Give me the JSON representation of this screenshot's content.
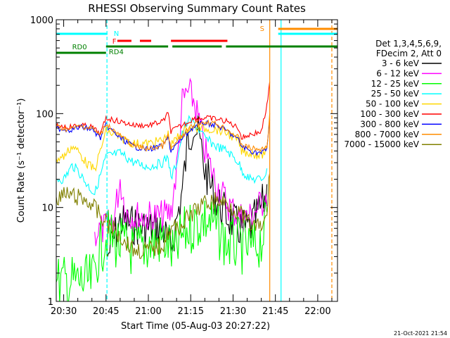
{
  "chart_data": {
    "type": "line",
    "title": "RHESSI Observing Summary Count Rates",
    "xlabel": "Start Time (05-Aug-03 20:27:22)",
    "ylabel": "Count Rate (s⁻¹ detector⁻¹)",
    "y_scale": "log",
    "ylim": [
      1,
      1000
    ],
    "xlim": [
      "20:27:22",
      "22:07:00"
    ],
    "x_ticks": [
      "20:30",
      "20:45",
      "21:00",
      "21:15",
      "21:30",
      "21:45",
      "22:00"
    ],
    "y_ticks": [
      "1",
      "10",
      "100",
      "1000"
    ],
    "legend_header": [
      "Det 1,3,4,5,6,9,",
      "FDecim 2, Att 0"
    ],
    "legend_position": "right",
    "timestamp": "21-Oct-2021 21:54",
    "flag_labels": {
      "night": "N",
      "flare": "F",
      "saa": "S",
      "rd0": "RD0",
      "rd4": "RD4"
    },
    "flag_bars": {
      "night": [
        [
          "20:27:22",
          "20:45:30"
        ],
        [
          "21:46:00",
          "22:07:00"
        ]
      ],
      "flare": [
        [
          "20:49:00",
          "20:54:00"
        ],
        [
          "20:57:00",
          "21:01:00"
        ],
        [
          "21:08:00",
          "21:28:00"
        ]
      ],
      "saa": [
        [
          "21:46:00",
          "22:07:00"
        ]
      ],
      "rd0": [
        [
          "20:27:22",
          "20:45:00"
        ]
      ],
      "rd4": [
        [
          "20:45:00",
          "21:07:00"
        ],
        [
          "21:08:30",
          "21:26:00"
        ],
        [
          "21:27:30",
          "22:07:00"
        ]
      ]
    },
    "vertical_markers": [
      {
        "time": "20:45:20",
        "style": "dashed",
        "color": "#00ffff"
      },
      {
        "time": "21:43:00",
        "style": "solid",
        "color": "#ff8c00"
      },
      {
        "time": "21:47:00",
        "style": "solid",
        "color": "#00ffff"
      },
      {
        "time": "22:05:00",
        "style": "dashed",
        "color": "#ff8c00"
      }
    ],
    "series": [
      {
        "name": "3 - 6 keV",
        "color": "#000000",
        "x": [
          "20:45:30",
          "20:50:00",
          "20:55:00",
          "21:00:00",
          "21:05:00",
          "21:08:00",
          "21:12:00",
          "21:14:00",
          "21:16:00",
          "21:18:00",
          "21:20:00",
          "21:24:00",
          "21:28:00",
          "21:32:00",
          "21:36:00",
          "21:40:00",
          "21:42:00"
        ],
        "y": [
          3.0,
          7.0,
          6.5,
          6.0,
          6.0,
          3.5,
          15,
          50,
          80,
          55,
          25,
          12,
          8,
          6,
          6,
          10,
          15
        ]
      },
      {
        "name": "6 - 12 keV",
        "color": "#ff00ff",
        "x": [
          "20:41:00",
          "20:45:00",
          "20:48:00",
          "20:50:00",
          "20:52:00",
          "20:55:00",
          "21:00:00",
          "21:05:00",
          "21:08:00",
          "21:10:00",
          "21:12:00",
          "21:14:00",
          "21:16:00",
          "21:18:00",
          "21:20:00",
          "21:24:00",
          "21:28:00",
          "21:32:00",
          "21:36:00",
          "21:40:00",
          "21:42:00"
        ],
        "y": [
          5.5,
          6.0,
          8.0,
          20,
          9.0,
          8.0,
          8.0,
          8.0,
          9.0,
          25,
          130,
          170,
          140,
          80,
          40,
          18,
          11,
          8,
          8,
          11,
          14
        ]
      },
      {
        "name": "12 - 25 keV",
        "color": "#00ff00",
        "x": [
          "20:27:22",
          "20:35:00",
          "20:40:00",
          "20:42:00",
          "20:45:00",
          "20:50:00",
          "20:55:00",
          "21:00:00",
          "21:05:00",
          "21:07:00",
          "21:09:00",
          "21:12:00",
          "21:16:00",
          "21:20:00",
          "21:24:00",
          "21:28:00",
          "21:32:00",
          "21:36:00",
          "21:40:00",
          "21:42:00"
        ],
        "y": [
          1.6,
          1.6,
          1.6,
          3.0,
          5.0,
          4.0,
          3.5,
          4.0,
          4.5,
          4.0,
          3.0,
          5.0,
          6.5,
          7.5,
          6.0,
          4.0,
          4.0,
          3.5,
          4.5,
          7.0
        ]
      },
      {
        "name": "25 - 50 keV",
        "color": "#00ffff",
        "x": [
          "20:27:22",
          "20:30:00",
          "20:33:00",
          "20:35:00",
          "20:38:00",
          "20:41:00",
          "20:45:00",
          "20:50:00",
          "20:55:00",
          "21:00:00",
          "21:05:00",
          "21:07:00",
          "21:08:00",
          "21:10:00",
          "21:12:00",
          "21:14:00",
          "21:16:00",
          "21:20:00",
          "21:24:00",
          "21:28:00",
          "21:32:00",
          "21:33:00",
          "21:36:00",
          "21:40:00",
          "21:42:00"
        ],
        "y": [
          20,
          20,
          28,
          25,
          18,
          14,
          35,
          38,
          30,
          27,
          30,
          35,
          20,
          30,
          60,
          85,
          80,
          55,
          45,
          40,
          30,
          25,
          20,
          20,
          24
        ]
      },
      {
        "name": "50 - 100 keV",
        "color": "#ffd700",
        "x": [
          "20:27:22",
          "20:30:00",
          "20:33:00",
          "20:35:00",
          "20:38:00",
          "20:41:00",
          "20:45:00",
          "20:50:00",
          "20:55:00",
          "21:00:00",
          "21:05:00",
          "21:07:00",
          "21:08:00",
          "21:10:00",
          "21:14:00",
          "21:18:00",
          "21:24:00",
          "21:28:00",
          "21:32:00",
          "21:33:00",
          "21:36:00",
          "21:40:00",
          "21:42:00"
        ],
        "y": [
          33,
          35,
          45,
          40,
          30,
          25,
          65,
          55,
          48,
          48,
          52,
          60,
          45,
          55,
          70,
          70,
          68,
          62,
          50,
          40,
          38,
          36,
          40
        ]
      },
      {
        "name": "100 - 300 keV",
        "color": "#ff0000",
        "x": [
          "20:27:22",
          "20:32:00",
          "20:36:00",
          "20:40:00",
          "20:43:00",
          "20:45:00",
          "20:50:00",
          "20:55:00",
          "21:00:00",
          "21:05:00",
          "21:07:00",
          "21:08:00",
          "21:12:00",
          "21:16:00",
          "21:20:00",
          "21:24:00",
          "21:28:00",
          "21:32:00",
          "21:33:00",
          "21:36:00",
          "21:40:00",
          "21:42:00",
          "21:43:00"
        ],
        "y": [
          75,
          72,
          75,
          72,
          60,
          90,
          82,
          75,
          75,
          82,
          100,
          65,
          75,
          88,
          90,
          88,
          82,
          70,
          55,
          60,
          64,
          120,
          210
        ]
      },
      {
        "name": "300 - 800 keV",
        "color": "#0000ff",
        "x": [
          "20:27:22",
          "20:32:00",
          "20:36:00",
          "20:40:00",
          "20:43:00",
          "20:45:00",
          "20:50:00",
          "20:55:00",
          "21:00:00",
          "21:05:00",
          "21:07:00",
          "21:08:00",
          "21:12:00",
          "21:16:00",
          "21:20:00",
          "21:24:00",
          "21:28:00",
          "21:32:00",
          "21:33:00",
          "21:36:00",
          "21:40:00",
          "21:42:00",
          "21:43:00"
        ],
        "y": [
          70,
          67,
          72,
          68,
          55,
          75,
          55,
          44,
          42,
          45,
          55,
          40,
          55,
          72,
          80,
          75,
          65,
          52,
          45,
          40,
          38,
          42,
          90
        ]
      },
      {
        "name": "800 - 7000 keV",
        "color": "#ff8c00",
        "x": [
          "20:27:22",
          "20:32:00",
          "20:36:00",
          "20:40:00",
          "20:43:00",
          "20:45:00",
          "20:50:00",
          "20:55:00",
          "21:00:00",
          "21:05:00",
          "21:07:00",
          "21:08:00",
          "21:12:00",
          "21:16:00",
          "21:20:00",
          "21:24:00",
          "21:28:00",
          "21:32:00",
          "21:33:00",
          "21:36:00",
          "21:40:00",
          "21:42:00",
          "21:43:00"
        ],
        "y": [
          72,
          68,
          74,
          70,
          58,
          78,
          58,
          45,
          42,
          45,
          58,
          42,
          58,
          76,
          82,
          78,
          68,
          55,
          47,
          43,
          41,
          45,
          95
        ]
      },
      {
        "name": "7000 - 15000 keV",
        "color": "#808000",
        "x": [
          "20:27:22",
          "20:32:00",
          "20:36:00",
          "20:40:00",
          "20:43:00",
          "20:45:00",
          "20:50:00",
          "20:55:00",
          "21:00:00",
          "21:05:00",
          "21:07:00",
          "21:09:00",
          "21:12:00",
          "21:16:00",
          "21:20:00",
          "21:24:00",
          "21:28:00",
          "21:32:00",
          "21:36:00",
          "21:40:00",
          "21:42:00",
          "21:43:00"
        ],
        "y": [
          13,
          13.5,
          12.5,
          11,
          8.0,
          7.0,
          5.0,
          3.5,
          3.5,
          4.0,
          5.5,
          6.0,
          6.5,
          9.0,
          11,
          12,
          11,
          9.0,
          6.5,
          6.0,
          8.0,
          25
        ]
      }
    ]
  }
}
